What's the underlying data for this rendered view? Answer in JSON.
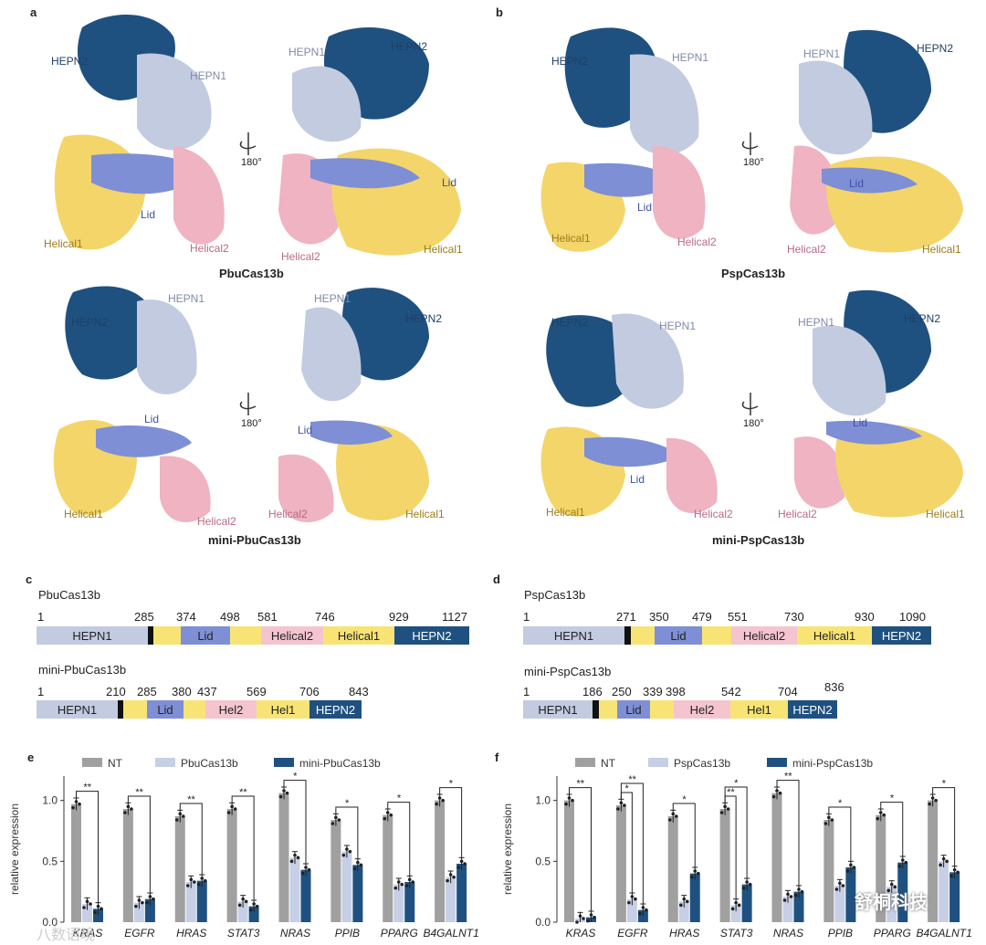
{
  "panel_a": {
    "letter": "a",
    "top": {
      "caption": "PbuCas13b",
      "left": {
        "hepn2": "HEPN2",
        "hepn1": "HEPN1",
        "lid": "Lid",
        "helical1": "Helical1",
        "helical2": "Helical2"
      },
      "right": {
        "hepn1": "HEPN1",
        "hepn2": "HEPN2",
        "lid": "Lid",
        "helical2": "Helical2",
        "helical1": "Helical1"
      },
      "rotation": "180°"
    },
    "bottom": {
      "caption": "mini-PbuCas13b",
      "left": {
        "hepn2": "HEPN2",
        "hepn1": "HEPN1",
        "lid": "Lid",
        "helical1": "Helical1",
        "helical2": "Helical2"
      },
      "right": {
        "hepn1": "HEPN1",
        "hepn2": "HEPN2",
        "lid": "Lid",
        "helical2": "Helical2",
        "helical1": "Helical1"
      },
      "rotation": "180°"
    }
  },
  "panel_b": {
    "letter": "b",
    "top": {
      "caption": "PspCas13b",
      "left": {
        "hepn2": "HEPN2",
        "hepn1": "HEPN1",
        "lid": "Lid",
        "helical1": "Helical1",
        "helical2": "Helical2"
      },
      "right": {
        "hepn1": "HEPN1",
        "hepn2": "HEPN2",
        "lid": "Lid",
        "helical2": "Helical2",
        "helical1": "Helical1"
      },
      "rotation": "180°"
    },
    "bottom": {
      "caption": "mini-PspCas13b",
      "left": {
        "hepn2": "HEPN2",
        "hepn1": "HEPN1",
        "lid": "Lid",
        "helical1": "Helical1",
        "helical2": "Helical2"
      },
      "right": {
        "hepn1": "HEPN1",
        "hepn2": "HEPN2",
        "lid": "Lid",
        "helical2": "Helical2",
        "helical1": "Helical1"
      },
      "rotation": "180°"
    }
  },
  "panel_c": {
    "letter": "c",
    "full": {
      "title": "PbuCas13b",
      "numbers": [
        "1",
        "285",
        "374",
        "498",
        "581",
        "746",
        "929",
        "1127"
      ],
      "domains": [
        "HEPN1",
        "Lid",
        "Helical2",
        "Helical1",
        "HEPN2"
      ]
    },
    "mini": {
      "title": "mini-PbuCas13b",
      "numbers": [
        "1",
        "210",
        "285",
        "380",
        "437",
        "569",
        "706",
        "843"
      ],
      "domains": [
        "HEPN1",
        "Lid",
        "Hel2",
        "Hel1",
        "HEPN2"
      ]
    }
  },
  "panel_d": {
    "letter": "d",
    "full": {
      "title": "PspCas13b",
      "numbers": [
        "1",
        "271",
        "350",
        "479",
        "551",
        "730",
        "930",
        "1090"
      ],
      "domains": [
        "HEPN1",
        "Lid",
        "Helical2",
        "Helical1",
        "HEPN2"
      ]
    },
    "mini": {
      "title": "mini-PspCas13b",
      "numbers": [
        "1",
        "186",
        "250",
        "339",
        "398",
        "542",
        "704",
        "836"
      ],
      "domains": [
        "HEPN1",
        "Lid",
        "Hel2",
        "Hel1",
        "HEPN2"
      ]
    }
  },
  "colors": {
    "hepn1": "#c3cbe0",
    "hepn2": "#1f5180",
    "lid": "#7e8fd6",
    "helical2": "#f4c4cf",
    "helical1": "#f8e474",
    "linker": "#f8e474",
    "black": "#111111",
    "nt": "#a0a0a0",
    "full": "#c6cfe6",
    "mini": "#1f5180"
  },
  "chart_data": [
    {
      "panel": "e",
      "type": "bar",
      "legend": [
        "NT",
        "PbuCas13b",
        "mini-PbuCas13b"
      ],
      "ylabel": "relative expression",
      "ylim": [
        0,
        1.2
      ],
      "yticks": [
        "0.0",
        "0.5",
        "1.0"
      ],
      "categories": [
        "KRAS",
        "EGFR",
        "HRAS",
        "STAT3",
        "NRAS",
        "PPIB",
        "PPARG",
        "B4GALNT1"
      ],
      "series": [
        {
          "name": "NT",
          "values": [
            0.97,
            0.93,
            0.87,
            0.93,
            1.06,
            0.84,
            0.88,
            1.0
          ]
        },
        {
          "name": "PbuCas13b",
          "values": [
            0.15,
            0.16,
            0.33,
            0.17,
            0.53,
            0.58,
            0.31,
            0.37
          ]
        },
        {
          "name": "mini-PbuCas13b",
          "values": [
            0.11,
            0.19,
            0.34,
            0.13,
            0.43,
            0.47,
            0.33,
            0.48
          ]
        }
      ],
      "significance": [
        "**",
        "**",
        "**",
        "**",
        "*",
        "*",
        "*",
        "*"
      ]
    },
    {
      "panel": "f",
      "type": "bar",
      "legend": [
        "NT",
        "PspCas13b",
        "mini-PspCas13b"
      ],
      "ylabel": "relative expression",
      "ylim": [
        0,
        1.2
      ],
      "yticks": [
        "0.0",
        "0.5",
        "1.0"
      ],
      "categories": [
        "KRAS",
        "EGFR",
        "HRAS",
        "STAT3",
        "NRAS",
        "PPIB",
        "PPARG",
        "B4GALNT1"
      ],
      "series": [
        {
          "name": "NT",
          "values": [
            1.0,
            0.96,
            0.87,
            0.93,
            1.06,
            0.84,
            0.88,
            1.0
          ]
        },
        {
          "name": "PspCas13b",
          "values": [
            0.03,
            0.19,
            0.17,
            0.14,
            0.21,
            0.3,
            0.29,
            0.5
          ]
        },
        {
          "name": "mini-PspCas13b",
          "values": [
            0.04,
            0.1,
            0.4,
            0.31,
            0.25,
            0.45,
            0.49,
            0.41
          ]
        }
      ],
      "significance": [
        [
          "**"
        ],
        [
          "*",
          "**"
        ],
        [
          "*"
        ],
        [
          "**",
          "*"
        ],
        [
          "**"
        ],
        [
          "*"
        ],
        [
          "*"
        ],
        [
          "*"
        ]
      ]
    }
  ],
  "watermark": {
    "left": "八数语境",
    "right": "舒桐科技"
  }
}
